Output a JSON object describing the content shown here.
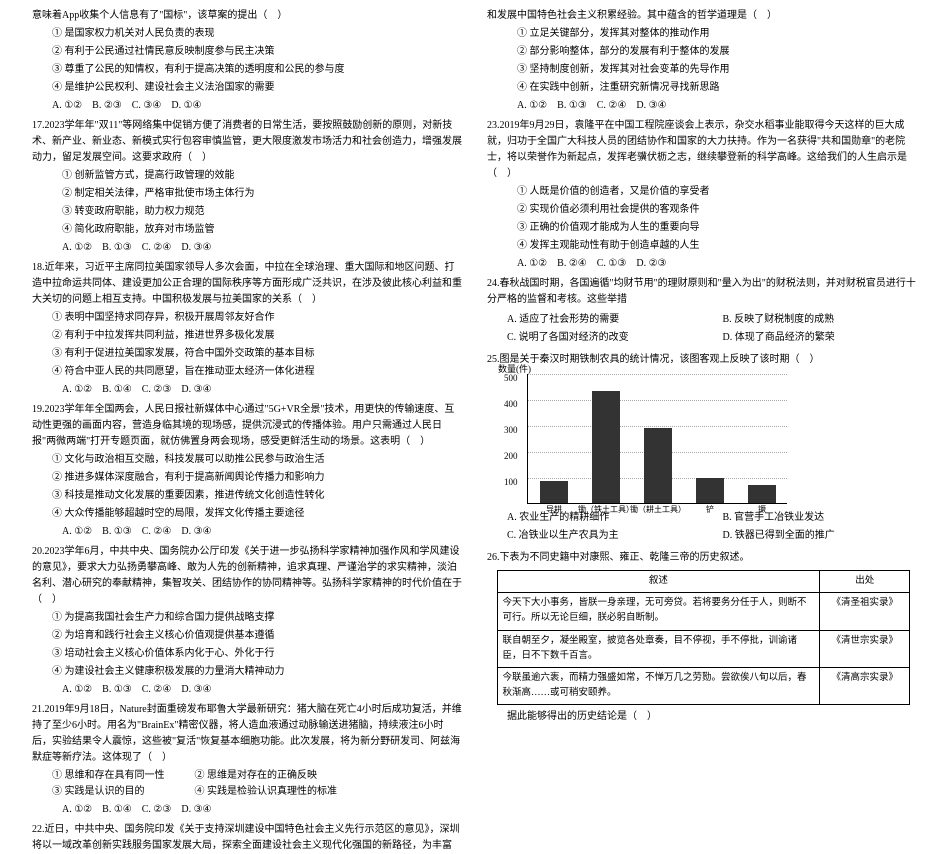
{
  "left": {
    "intro": "意味着App收集个人信息有了\"国标\"，该草案的提出（　）",
    "opts1": [
      "① 是国家权力机关对人民负责的表现",
      "② 有利于公民通过社情民意反映制度参与民主决策",
      "③ 尊重了公民的知情权，有利于提高决策的透明度和公民的参与度",
      "④ 是维护公民权利、建设社会主义法治国家的需要"
    ],
    "ans1": "A. ①②　B. ②③　C. ③④　D. ①④",
    "q17": "17.2023学年年\"双11\"等网络集中促销方便了消费者的日常生活，要按照鼓励创新的原则，对新技术、新产业、新业态、新模式实行包容审慎监管，更大限度激发市场活力和社会创造力，增强发展动力，留足发展空间。这要求政府（　）",
    "opts17": [
      "① 创新监管方式，提高行政管理的效能",
      "② 制定相关法律，严格审批使市场主体行为",
      "③ 转变政府职能，助力权力规范",
      "④ 简化政府职能，放弃对市场监管"
    ],
    "ans17": "A. ①②　B. ①③　C. ②④　D. ③④",
    "q18": "18.近年来，习近平主席同拉美国家领导人多次会面，中拉在全球治理、重大国际和地区问题、打造中拉命运共同体、建设更加公正合理的国际秩序等方面形成广泛共识，在涉及彼此核心利益和重大关切的问题上相互支持。中国积极发展与拉美国家的关系（　）",
    "opts18": [
      "① 表明中国坚持求同存异，积极开展周邻友好合作",
      "② 有利于中拉发挥共同利益，推进世界多极化发展",
      "③ 有利于促进拉美国家发展，符合中国外交政策的基本目标",
      "④ 符合中亚人民的共同愿望，旨在推动亚太经济一体化进程"
    ],
    "ans18": "A. ①②　B. ①④　C. ②③　D. ③④",
    "q19": "19.2023学年年全国两会，人民日报社新媒体中心通过\"5G+VR全景\"技术，用更快的传输速度、互动性更强的画面内容，营造身临其境的现场感，提供沉浸式的传播体验。用户只需通过人民日报\"两微两端\"打开专题页面，就仿佛置身两会现场，感受更鲜活生动的场景。这表明（　）",
    "opts19": [
      "① 文化与政治相互交融，科技发展可以助推公民参与政治生活",
      "② 推进多媒体深度融合，有利于提高新闻舆论传播力和影响力",
      "③ 科技是推动文化发展的重要因素，推进传统文化创造性转化",
      "④ 大众传播能够超越时空的局限，发挥文化传播主要途径"
    ],
    "ans19": "A. ①②　B. ①③　C. ②④　D. ③④",
    "q20": "20.2023学年6月，中共中央、国务院办公厅印发《关于进一步弘扬科学家精神加强作风和学风建设的意见》，要求大力弘扬勇攀高峰、敢为人先的创新精神，追求真理、严谨治学的求实精神，淡泊名利、潜心研究的奉献精神，集智攻关、团结协作的协同精神等。弘扬科学家精神的时代价值在于（　）",
    "opts20": [
      "① 为提高我国社会生产力和综合国力提供战略支撑",
      "② 为培育和践行社会主义核心价值观提供基本遵循",
      "③ 培动社会主义核心价值体系内化于心、外化于行",
      "④ 为建设社会主义健康积极发展的力量消大精神动力"
    ],
    "ans20": "A. ①②　B. ①③　C. ②④　D. ③④",
    "q21": "21.2019年9月18日，Nature封面重磅发布耶鲁大学最新研究：猪大脑在死亡4小时后成功复活，并维持了至少6小时。用名为\"BrainEx\"精密仪器，将人造血液通过动脉输送进猪脑，持续液注6小时后，实验结果令人震惊，这些被\"复活\"恢复基本细胞功能。此次发展，将为新分野研发司、阿兹海默症等新疗法。这体现了（　）",
    "opts21": "① 思维和存在具有同一性　　　② 思维是对存在的正确反映\n③ 实践是认识的目的　　　　　④ 实践是检验认识真理性的标准",
    "ans21": "A. ①②　B. ①④　C. ②③　D. ③④",
    "q22": "22.近日，中共中央、国务院印发《关于支持深圳建设中国特色社会主义先行示范区的意见》，深圳将以一域改革创新实践服务国家发展大局，探索全面建设社会主义现代化强国的新路径，为丰富"
  },
  "right": {
    "cont22": "和发展中国特色社会主义积累经验。其中蕴含的哲学道理是（　）",
    "opts22": [
      "① 立足关键部分，发挥其对整体的推动作用",
      "② 部分影响整体，部分的发展有利于整体的发展",
      "③ 坚持制度创新，发挥其对社会变革的先导作用",
      "④ 在实践中创新，注重研究新情况寻找新思路"
    ],
    "ans22": "A. ①②　B. ①③　C. ②④　D. ③④",
    "q23": "23.2019年9月29日，袁隆平在中国工程院座谈会上表示，杂交水稻事业能取得今天这样的巨大成就，归功于全国广大科技人员的团结协作和国家的大力扶持。作为一名获得\"共和国勋章\"的老院士，将以荣誉作为新起点，发挥老骥伏枥之志，继续攀登新的科学高峰。这给我们的人生启示是（　）",
    "opts23": [
      "① 人既是价值的创造者，又是价值的享受者",
      "② 实现价值必须利用社会提供的客观条件",
      "③ 正确的价值观才能成为人生的重要向导",
      "④ 发挥主观能动性有助于创造卓越的人生"
    ],
    "ans23": "A. ①②　B. ②④　C. ①③　D. ②③",
    "q24": "24.春秋战国时期，各国遍循\"均财节用\"的理财原则和\"量入为出\"的财税法则，并对财税官员进行十分严格的监督和考核。这些举措",
    "opts24": {
      "A": "A. 适应了社会形势的需要",
      "B": "B. 反映了财税制度的成熟",
      "C": "C. 说明了各国对经济的改变",
      "D": "D. 体现了商品经济的繁荣"
    },
    "q25": "25.图是关于秦汉时期铁制农具的统计情况，该图客观上反映了该时期（　）",
    "chart": {
      "ylabel": "数量(件)",
      "ymax": 500,
      "ytick_step": 100,
      "categories": [
        "导耕",
        "锄（铁土工具）",
        "锄（耕土工具）",
        "铲",
        "镢"
      ],
      "values": [
        85,
        430,
        290,
        95,
        70
      ],
      "bar_color": "#333333",
      "background": "#ffffff"
    },
    "opts25": {
      "A": "A. 农业生产的精耕细作",
      "B": "B. 官营手工冶铁业发达",
      "C": "C. 冶铁业以生产农具为主",
      "D": "D. 铁器已得到全面的推广"
    },
    "q26": "26.下表为不同史籍中对康熙、雍正、乾隆三帝的历史叙述。",
    "table": {
      "head": [
        "叙述",
        "出处"
      ],
      "rows": [
        [
          "今天下大小事务，皆朕一身亲理，无可旁贷。若将要务分任于人，则断不可行。所以无论巨细，朕必躬自断制。",
          "《清圣祖实录》"
        ],
        [
          "联自朝至夕，凝坐殿室，披览各处章奏，目不停视，手不停批，训谕诸臣，日不下数千百言。",
          "《清世宗实录》"
        ],
        [
          "今联虽逾六袠，而精力强盛如常，不惮万几之劳勚。尝欲俟八旬以后，春秋渐高……或可稍安颐养。",
          "《清高宗实录》"
        ]
      ]
    },
    "tail26": "据此能够得出的历史结论是（　）"
  }
}
